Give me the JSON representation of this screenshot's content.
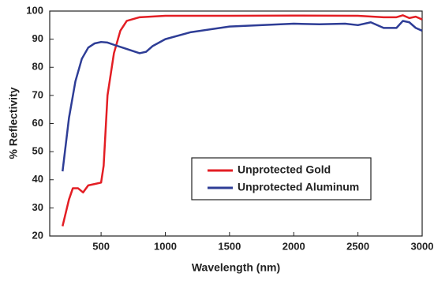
{
  "chart_data": {
    "type": "line",
    "x_label": "Wavelength (nm)",
    "y_label": "% Reflectivity",
    "xlim": [
      100,
      3000
    ],
    "xticks": [
      500,
      1000,
      1500,
      2000,
      2500,
      3000
    ],
    "ylim": [
      20,
      100
    ],
    "yticks": [
      20,
      30,
      40,
      50,
      60,
      70,
      80,
      90,
      100
    ],
    "grid": false,
    "legend": "lower right",
    "series": [
      {
        "name": "Unprotected Gold",
        "color": "#e31e24",
        "x": [
          200,
          250,
          280,
          320,
          360,
          400,
          450,
          500,
          520,
          550,
          600,
          650,
          700,
          800,
          1000,
          1500,
          2000,
          2500,
          2700,
          2800,
          2850,
          2900,
          2950,
          3000
        ],
        "values": [
          23.5,
          33,
          37,
          37,
          35.5,
          38,
          38.5,
          39,
          45,
          70,
          85,
          93,
          96.5,
          97.8,
          98.3,
          98.3,
          98.4,
          98.3,
          97.8,
          97.8,
          98.5,
          97.5,
          98,
          97
        ]
      },
      {
        "name": "Unprotected Aluminum",
        "color": "#2e3d96",
        "x": [
          200,
          250,
          300,
          350,
          400,
          450,
          500,
          550,
          600,
          700,
          800,
          850,
          900,
          1000,
          1200,
          1500,
          2000,
          2200,
          2400,
          2500,
          2600,
          2700,
          2800,
          2850,
          2900,
          2950,
          3000
        ],
        "values": [
          43,
          62,
          75,
          83,
          87,
          88.5,
          89,
          88.8,
          88,
          86.5,
          85,
          85.5,
          87.5,
          90,
          92.5,
          94.5,
          95.5,
          95.3,
          95.5,
          95,
          96,
          94,
          94,
          96.5,
          96,
          94,
          93
        ]
      }
    ]
  }
}
